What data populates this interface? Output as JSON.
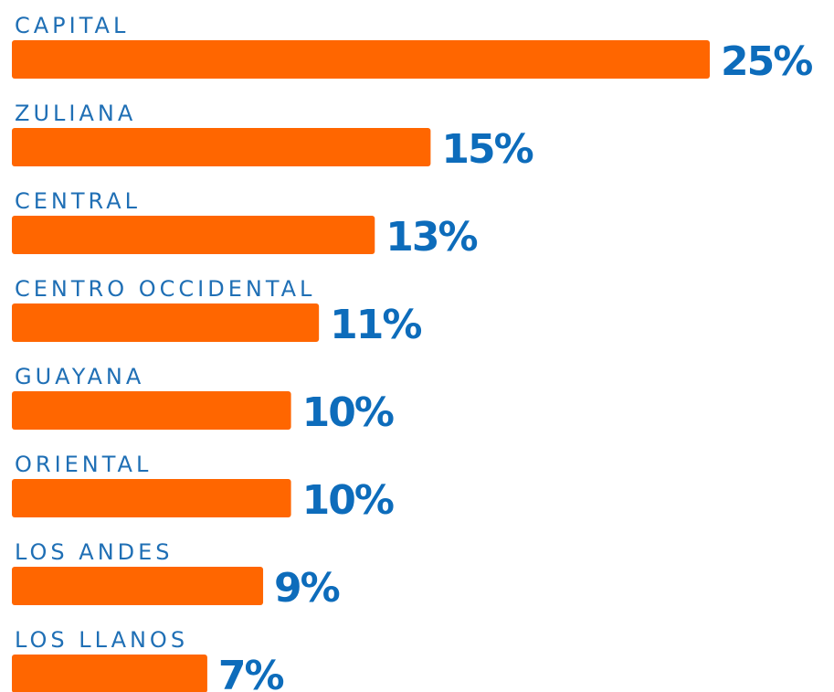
{
  "chart_data": {
    "type": "bar",
    "orientation": "horizontal",
    "categories": [
      "CAPITAL",
      "ZULIANA",
      "CENTRAL",
      "CENTRO OCCIDENTAL",
      "GUAYANA",
      "ORIENTAL",
      "LOS ANDES",
      "LOS LLANOS"
    ],
    "values": [
      25,
      15,
      13,
      11,
      10,
      10,
      9,
      7
    ],
    "value_labels": [
      "25%",
      "15%",
      "13%",
      "11%",
      "10%",
      "10%",
      "9%",
      "7%"
    ],
    "color": "#ff6600"
  }
}
